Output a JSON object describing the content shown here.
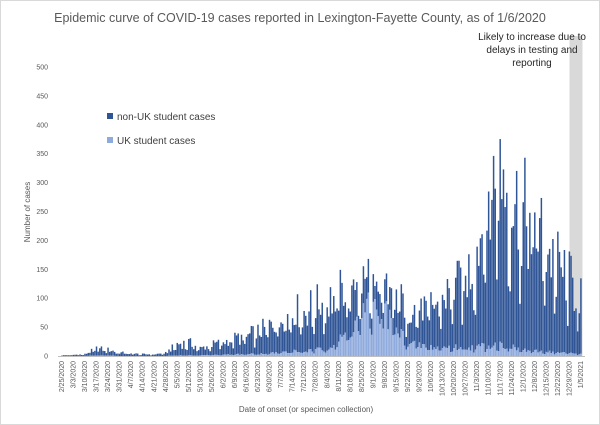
{
  "chart_data": {
    "type": "bar",
    "stacked": true,
    "title": "Epidemic curve of COVID-19 cases reported in Lexington-Fayette County, as of 1/6/2020",
    "xlabel": "Date of onset (or specimen collection)",
    "ylabel": "Number of cases",
    "ylim": [
      0,
      500
    ],
    "yticks": [
      0,
      50,
      100,
      150,
      200,
      250,
      300,
      350,
      400,
      450,
      500
    ],
    "grid": false,
    "legend_position": "left",
    "x_tick_labels": [
      "2/25/2020",
      "3/3/2020",
      "3/10/2020",
      "3/17/2020",
      "3/24/2020",
      "3/31/2020",
      "4/7/2020",
      "4/14/2020",
      "4/21/2020",
      "4/28/2020",
      "5/5/2020",
      "5/12/2020",
      "5/19/2020",
      "5/26/2020",
      "6/2/2020",
      "6/9/2020",
      "6/16/2020",
      "6/23/2020",
      "6/30/2020",
      "7/7/2020",
      "7/14/2020",
      "7/21/2020",
      "7/28/2020",
      "8/4/2020",
      "8/11/2020",
      "8/18/2020",
      "8/25/2020",
      "9/1/2020",
      "9/8/2020",
      "9/15/2020",
      "9/22/2020",
      "9/29/2020",
      "10/6/2020",
      "10/13/2020",
      "10/20/2020",
      "10/27/2020",
      "11/3/2020",
      "11/10/2020",
      "11/17/2020",
      "11/24/2020",
      "12/1/2020",
      "12/8/2020",
      "12/15/2020",
      "12/22/2020",
      "12/29/2020",
      "1/5/2021"
    ],
    "weekly_anchor_series": [
      {
        "name": "non-UK student cases",
        "color": "#2f5597",
        "values": [
          1,
          2,
          3,
          12,
          10,
          6,
          4,
          3,
          3,
          5,
          20,
          22,
          12,
          18,
          22,
          28,
          30,
          38,
          48,
          58,
          70,
          72,
          75,
          85,
          80,
          70,
          55,
          40,
          35,
          55,
          60,
          60,
          70,
          85,
          105,
          120,
          170,
          250,
          320,
          260,
          230,
          220,
          180,
          150,
          125,
          95
        ]
      },
      {
        "name": "UK student cases",
        "color": "#8faadc",
        "values": [
          0,
          0,
          0,
          1,
          1,
          0,
          0,
          0,
          0,
          0,
          1,
          1,
          1,
          2,
          2,
          3,
          3,
          4,
          5,
          6,
          8,
          8,
          10,
          15,
          25,
          45,
          70,
          85,
          80,
          45,
          25,
          18,
          15,
          15,
          15,
          15,
          15,
          20,
          20,
          15,
          10,
          8,
          8,
          6,
          5,
          4
        ]
      }
    ],
    "annotation": {
      "lines": [
        "Likely to increase due to",
        "delays in testing and",
        "reporting"
      ]
    }
  }
}
